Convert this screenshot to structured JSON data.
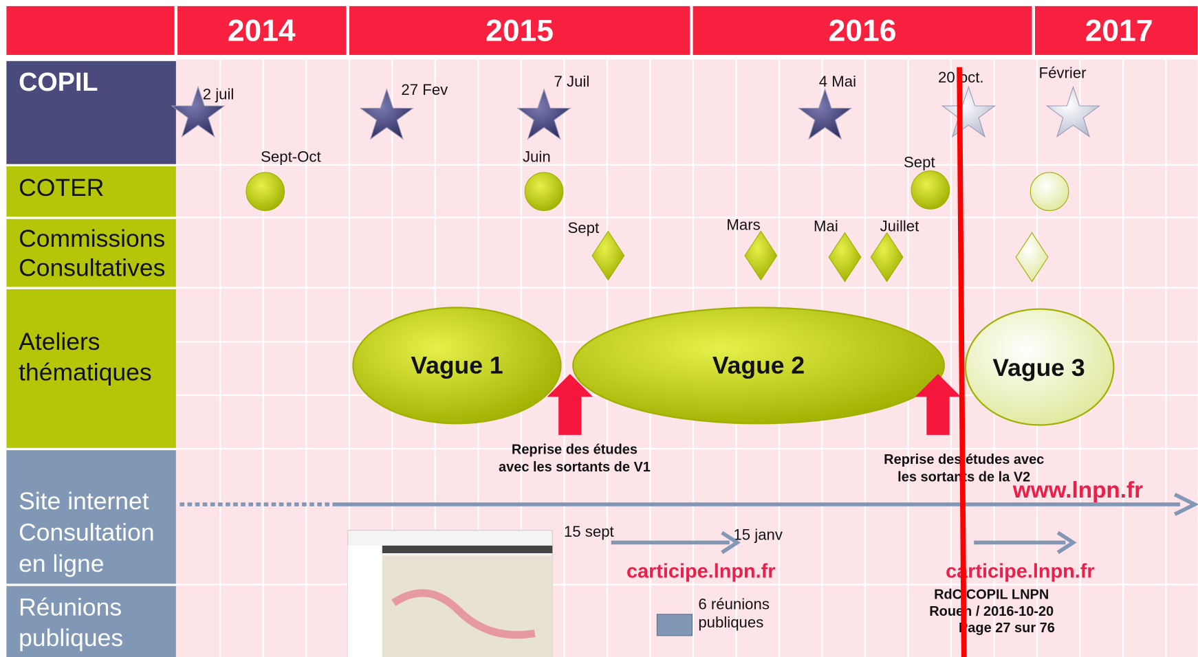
{
  "years": [
    "2014",
    "2015",
    "2016",
    "2017"
  ],
  "rows": [
    {
      "lines": [
        "COPIL"
      ]
    },
    {
      "lines": [
        "COTER"
      ]
    },
    {
      "lines": [
        "Commissions",
        "Consultatives"
      ]
    },
    {
      "lines": [
        "Ateliers",
        "thématiques"
      ]
    },
    {
      "lines": [
        "Site internet",
        "Consultation",
        "en ligne"
      ]
    },
    {
      "lines": [
        "Réunions",
        "publiques"
      ]
    }
  ],
  "copil": [
    "2 juil",
    "27 Fev",
    "7 Juil",
    "4 Mai",
    "20 oct.",
    "Février"
  ],
  "coter": [
    "Sept-Oct",
    "Juin",
    "Sept"
  ],
  "commissions": [
    "Sept",
    "Mars",
    "Mai",
    "Juillet"
  ],
  "ateliers": [
    "Vague 1",
    "Vague 2",
    "Vague 3"
  ],
  "notes": [
    {
      "lines": [
        "Reprise des études",
        "avec les sortants de V1"
      ]
    },
    {
      "lines": [
        "Reprise des études avec",
        "les sortants de la V2"
      ]
    }
  ],
  "site": {
    "url": "www.lnpn.fr",
    "start": "15 sept",
    "end": "15 janv",
    "carticipe": [
      "carticipe.lnpn.fr",
      "carticipe.lnpn.fr"
    ]
  },
  "reunions": {
    "lines": [
      "6 réunions",
      "publiques"
    ]
  },
  "footer": [
    "RdC COPIL LNPN",
    "Rouen / 2016-10-20",
    "Page 27 sur 76"
  ]
}
